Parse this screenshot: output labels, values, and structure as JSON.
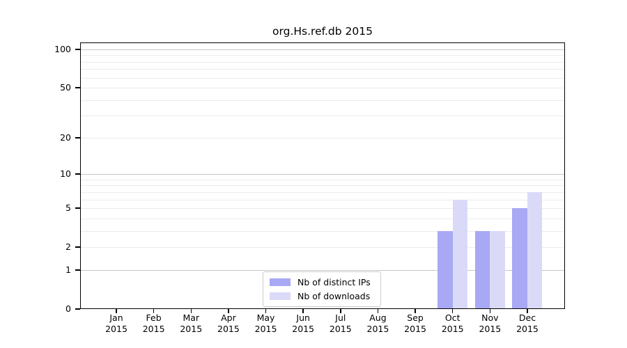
{
  "chart_data": {
    "type": "bar",
    "title": "org.Hs.ref.db 2015",
    "x_tick_year": "2015",
    "categories": [
      "Jan",
      "Feb",
      "Mar",
      "Apr",
      "May",
      "Jun",
      "Jul",
      "Aug",
      "Sep",
      "Oct",
      "Nov",
      "Dec"
    ],
    "series": [
      {
        "name": "Nb of distinct IPs",
        "color": "#a8a8f5",
        "values": [
          0,
          0,
          0,
          0,
          0,
          0,
          0,
          0,
          0,
          3,
          3,
          5
        ]
      },
      {
        "name": "Nb of downloads",
        "color": "#dadaf8",
        "values": [
          0,
          0,
          0,
          0,
          0,
          0,
          0,
          0,
          0,
          6,
          3,
          7
        ]
      }
    ],
    "y_axis": {
      "scale": "log1p",
      "ylim": [
        0,
        100
      ],
      "ticks": [
        0,
        1,
        2,
        5,
        10,
        20,
        50,
        100
      ],
      "minor_gridlines": [
        2,
        3,
        4,
        5,
        6,
        7,
        8,
        9,
        20,
        30,
        40,
        50,
        60,
        70,
        80,
        90
      ],
      "major_gridlines": [
        1,
        10,
        100
      ],
      "minor_grid_color": "#ececec",
      "major_grid_color": "#c6c6c6"
    },
    "legend": {
      "position": "bottom-center",
      "entries": [
        "Nb of distinct IPs",
        "Nb of downloads"
      ]
    }
  }
}
